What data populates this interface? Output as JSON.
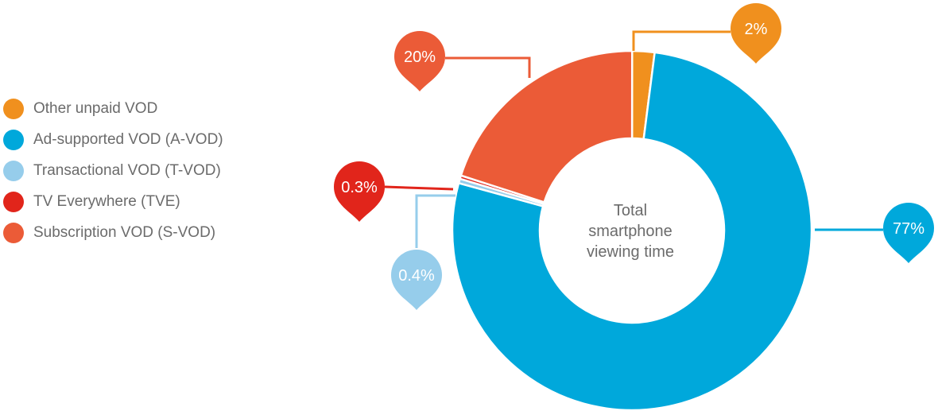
{
  "chart_data": {
    "type": "donut",
    "center_label": [
      "Total",
      "smartphone",
      "viewing time"
    ],
    "slices": [
      {
        "name": "Other unpaid VOD",
        "value": 2,
        "label": "2%",
        "color": "#F0901E"
      },
      {
        "name": "Ad-supported VOD (A-VOD)",
        "value": 77,
        "label": "77%",
        "color": "#00A8DB"
      },
      {
        "name": "Transactional VOD (T-VOD)",
        "value": 0.4,
        "label": "0.4%",
        "color": "#96CDEB"
      },
      {
        "name": "TV Everywhere (TVE)",
        "value": 0.3,
        "label": "0.3%",
        "color": "#E1251B"
      },
      {
        "name": "Subscription VOD (S-VOD)",
        "value": 20,
        "label": "20%",
        "color": "#EB5B37"
      }
    ],
    "legend_position": "left"
  }
}
